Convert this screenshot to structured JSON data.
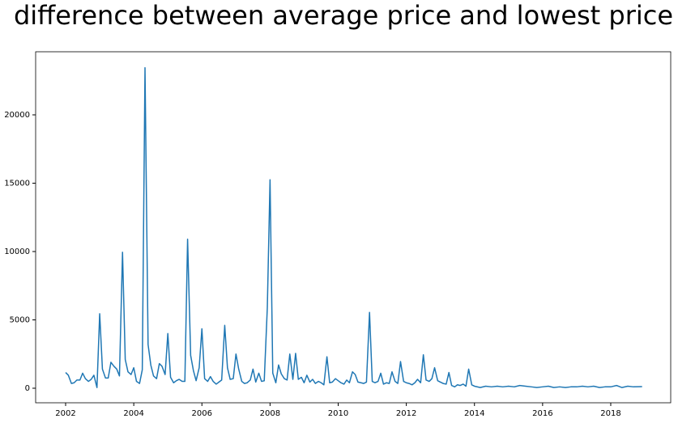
{
  "chart_data": {
    "type": "line",
    "title": "difference between average price and lowest price",
    "x": [
      2002,
      2002.08,
      2002.17,
      2002.25,
      2002.33,
      2002.42,
      2002.5,
      2002.58,
      2002.67,
      2002.75,
      2002.83,
      2002.92,
      2003,
      2003.08,
      2003.17,
      2003.25,
      2003.33,
      2003.42,
      2003.5,
      2003.58,
      2003.67,
      2003.75,
      2003.83,
      2003.92,
      2004,
      2004.08,
      2004.17,
      2004.25,
      2004.33,
      2004.42,
      2004.5,
      2004.58,
      2004.67,
      2004.75,
      2004.83,
      2004.92,
      2005,
      2005.08,
      2005.17,
      2005.25,
      2005.33,
      2005.42,
      2005.5,
      2005.58,
      2005.67,
      2005.75,
      2005.83,
      2005.92,
      2006,
      2006.08,
      2006.17,
      2006.25,
      2006.33,
      2006.42,
      2006.5,
      2006.58,
      2006.67,
      2006.75,
      2006.83,
      2006.92,
      2007,
      2007.08,
      2007.17,
      2007.25,
      2007.33,
      2007.42,
      2007.5,
      2007.58,
      2007.67,
      2007.75,
      2007.83,
      2007.92,
      2008,
      2008.08,
      2008.17,
      2008.25,
      2008.33,
      2008.42,
      2008.5,
      2008.58,
      2008.67,
      2008.75,
      2008.83,
      2008.92,
      2009,
      2009.08,
      2009.17,
      2009.25,
      2009.33,
      2009.42,
      2009.5,
      2009.58,
      2009.67,
      2009.75,
      2009.83,
      2009.92,
      2010,
      2010.08,
      2010.17,
      2010.25,
      2010.33,
      2010.42,
      2010.5,
      2010.58,
      2010.67,
      2010.75,
      2010.83,
      2010.92,
      2011,
      2011.08,
      2011.17,
      2011.25,
      2011.33,
      2011.42,
      2011.5,
      2011.58,
      2011.67,
      2011.75,
      2011.83,
      2011.92,
      2012,
      2012.08,
      2012.17,
      2012.25,
      2012.33,
      2012.42,
      2012.5,
      2012.58,
      2012.67,
      2012.75,
      2012.83,
      2012.92,
      2013,
      2013.08,
      2013.17,
      2013.25,
      2013.33,
      2013.42,
      2013.5,
      2013.58,
      2013.67,
      2013.75,
      2013.83,
      2013.92,
      2014,
      2014.17,
      2014.33,
      2014.5,
      2014.67,
      2014.83,
      2015,
      2015.17,
      2015.33,
      2015.5,
      2015.67,
      2015.83,
      2016,
      2016.17,
      2016.33,
      2016.5,
      2016.67,
      2016.83,
      2017,
      2017.17,
      2017.33,
      2017.5,
      2017.67,
      2017.83,
      2018,
      2018.17,
      2018.33,
      2018.5,
      2018.67,
      2018.92
    ],
    "series": [
      {
        "color": "#1f77b4",
        "values": [
          1150,
          950,
          350,
          400,
          600,
          600,
          1100,
          700,
          500,
          650,
          950,
          50,
          5450,
          1400,
          750,
          750,
          1900,
          1600,
          1400,
          900,
          9950,
          2100,
          1200,
          1000,
          1500,
          500,
          350,
          1350,
          23450,
          3200,
          1700,
          900,
          700,
          1800,
          1600,
          1000,
          4000,
          800,
          400,
          550,
          650,
          500,
          500,
          10900,
          2400,
          1300,
          550,
          1500,
          4350,
          700,
          500,
          850,
          500,
          300,
          450,
          600,
          4600,
          1500,
          650,
          700,
          2500,
          1400,
          500,
          350,
          400,
          600,
          1400,
          450,
          1100,
          500,
          550,
          5900,
          15250,
          1100,
          400,
          1700,
          1050,
          700,
          600,
          2500,
          650,
          2550,
          650,
          800,
          400,
          950,
          450,
          650,
          350,
          500,
          400,
          250,
          2300,
          400,
          450,
          700,
          550,
          400,
          300,
          600,
          400,
          1200,
          1000,
          450,
          400,
          350,
          450,
          5550,
          500,
          400,
          500,
          1100,
          300,
          400,
          350,
          1200,
          500,
          350,
          1950,
          500,
          400,
          350,
          250,
          400,
          650,
          400,
          2450,
          600,
          500,
          700,
          1500,
          550,
          450,
          350,
          300,
          1150,
          200,
          100,
          250,
          200,
          300,
          150,
          1400,
          250,
          150,
          50,
          150,
          100,
          150,
          100,
          150,
          100,
          200,
          150,
          100,
          50,
          100,
          150,
          50,
          100,
          50,
          100,
          100,
          150,
          100,
          150,
          50,
          100,
          100,
          200,
          50,
          150,
          100,
          120
        ]
      }
    ],
    "xlim": [
      2001.12,
      2019.76
    ],
    "ylim": [
      -1065,
      24615
    ],
    "xticks": [
      2002,
      2004,
      2006,
      2008,
      2010,
      2012,
      2014,
      2016,
      2018
    ],
    "yticks": [
      0,
      5000,
      10000,
      15000,
      20000
    ]
  }
}
